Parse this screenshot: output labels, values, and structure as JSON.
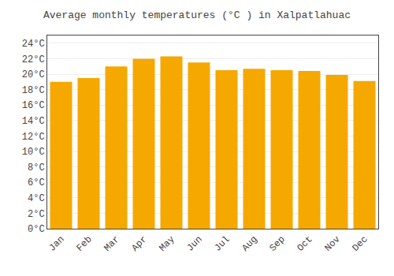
{
  "chart_data": {
    "type": "bar",
    "title": "Average monthly temperatures (°C ) in Xalpatlahuac",
    "categories": [
      "Jan",
      "Feb",
      "Mar",
      "Apr",
      "May",
      "Jun",
      "Jul",
      "Aug",
      "Sep",
      "Oct",
      "Nov",
      "Dec"
    ],
    "values": [
      19.0,
      19.5,
      21.0,
      22.0,
      22.3,
      21.5,
      20.5,
      20.7,
      20.5,
      20.4,
      19.9,
      19.1
    ],
    "color": "#F5A800",
    "ylim": [
      0,
      25
    ],
    "yticks": [
      {
        "value": 0,
        "label": "0°C"
      },
      {
        "value": 2,
        "label": "2°C"
      },
      {
        "value": 4,
        "label": "4°C"
      },
      {
        "value": 6,
        "label": "6°C"
      },
      {
        "value": 8,
        "label": "8°C"
      },
      {
        "value": 10,
        "label": "10°C"
      },
      {
        "value": 12,
        "label": "12°C"
      },
      {
        "value": 14,
        "label": "14°C"
      },
      {
        "value": 16,
        "label": "16°C"
      },
      {
        "value": 18,
        "label": "18°C"
      },
      {
        "value": 20,
        "label": "20°C"
      },
      {
        "value": 22,
        "label": "22°C"
      },
      {
        "value": 24,
        "label": "24°C"
      }
    ],
    "grid": true
  }
}
